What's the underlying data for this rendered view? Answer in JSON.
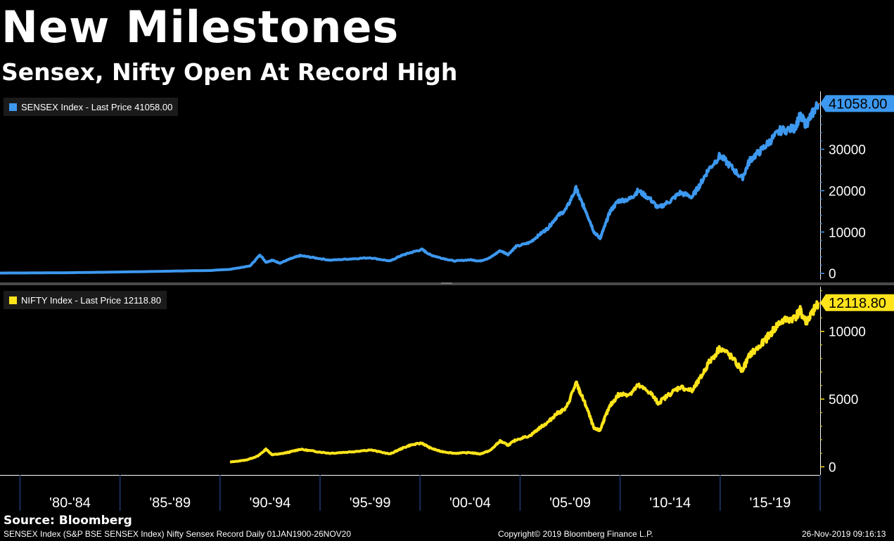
{
  "header": {
    "title": "New Milestones",
    "subtitle": "Sensex, Nifty Open At Record High"
  },
  "colors": {
    "sensex": "#3d98ef",
    "nifty": "#ffe41b",
    "background": "#000000",
    "separator": "#4a4a4a"
  },
  "footer": {
    "source": "Source: Bloomberg",
    "left": "SENSEX Index (S&P BSE SENSEX Index) Nifty Sensex Record  Daily 01JAN1900-26NOV20",
    "center": "Copyright© 2019 Bloomberg Finance L.P.",
    "right": "26-Nov-2019 09:16:13"
  },
  "chart_data": [
    {
      "type": "line",
      "name": "SENSEX",
      "legend": "SENSEX Index  - Last Price 41058.00",
      "last_price_label": "41058.00",
      "y_ticks": [
        0,
        10000,
        20000,
        30000
      ],
      "y_tick_labels": [
        "0",
        "10000",
        "20000",
        "30000"
      ],
      "ylim": [
        -1500,
        44000
      ],
      "x": [
        1979.0,
        1982.0,
        1985.0,
        1987.0,
        1988.5,
        1989.5,
        1990.5,
        1991.5,
        1992.0,
        1992.3,
        1992.6,
        1993.0,
        1993.5,
        1994.0,
        1994.7,
        1995.5,
        1996.5,
        1997.5,
        1998.5,
        1999.0,
        1999.5,
        2000.1,
        2000.5,
        2001.0,
        2001.7,
        2002.5,
        2003.0,
        2003.5,
        2004.0,
        2004.4,
        2004.8,
        2005.5,
        2006.0,
        2006.4,
        2006.8,
        2007.3,
        2007.8,
        2008.0,
        2008.3,
        2008.7,
        2009.0,
        2009.2,
        2009.5,
        2009.9,
        2010.5,
        2010.9,
        2011.5,
        2011.9,
        2012.5,
        2013.0,
        2013.6,
        2014.0,
        2014.4,
        2015.0,
        2015.5,
        2016.1,
        2016.5,
        2017.0,
        2017.5,
        2018.0,
        2018.7,
        2019.0,
        2019.3,
        2019.6,
        2019.9
      ],
      "values": [
        100,
        150,
        350,
        500,
        650,
        700,
        1000,
        1800,
        4500,
        2700,
        3200,
        2500,
        3500,
        4300,
        3800,
        3200,
        3500,
        3800,
        3000,
        4200,
        5000,
        5800,
        4500,
        3800,
        3000,
        3300,
        3000,
        3800,
        5500,
        4600,
        6500,
        7500,
        9500,
        11000,
        13500,
        15500,
        20500,
        18000,
        15000,
        10000,
        8500,
        11000,
        15000,
        17500,
        18000,
        20000,
        18000,
        15800,
        17500,
        19500,
        18500,
        21500,
        25000,
        28500,
        26000,
        23000,
        27500,
        29500,
        32000,
        34500,
        35000,
        38000,
        36000,
        38500,
        41058
      ]
    },
    {
      "type": "line",
      "name": "NIFTY",
      "legend": "NIFTY Index  - Last Price 12118.80",
      "last_price_label": "12118.80",
      "y_ticks": [
        0,
        5000,
        10000
      ],
      "y_tick_labels": [
        "0",
        "5000",
        "10000"
      ],
      "ylim": [
        -600,
        13300
      ],
      "x": [
        1990.5,
        1991.3,
        1991.9,
        1992.3,
        1992.6,
        1993.0,
        1993.5,
        1994.0,
        1994.7,
        1995.5,
        1996.5,
        1997.5,
        1998.5,
        1999.0,
        1999.5,
        2000.1,
        2000.5,
        2001.0,
        2001.7,
        2002.5,
        2003.0,
        2003.5,
        2004.0,
        2004.4,
        2004.8,
        2005.5,
        2006.0,
        2006.4,
        2006.8,
        2007.3,
        2007.8,
        2008.0,
        2008.3,
        2008.7,
        2009.0,
        2009.2,
        2009.5,
        2009.9,
        2010.5,
        2010.9,
        2011.5,
        2011.9,
        2012.5,
        2013.0,
        2013.6,
        2014.0,
        2014.4,
        2015.0,
        2015.5,
        2016.1,
        2016.5,
        2017.0,
        2017.5,
        2018.0,
        2018.7,
        2019.0,
        2019.3,
        2019.6,
        2019.9
      ],
      "values": [
        350,
        500,
        800,
        1300,
        900,
        950,
        1100,
        1300,
        1150,
        1000,
        1100,
        1250,
        950,
        1300,
        1600,
        1750,
        1400,
        1150,
        1000,
        1050,
        950,
        1200,
        1900,
        1600,
        2000,
        2300,
        2900,
        3300,
        3900,
        4300,
        6200,
        5500,
        4500,
        2800,
        2700,
        3500,
        4500,
        5300,
        5400,
        6000,
        5500,
        4700,
        5400,
        5900,
        5600,
        6500,
        7600,
        8800,
        8200,
        7100,
        8300,
        8900,
        9800,
        10700,
        11000,
        11500,
        10700,
        11300,
        12118
      ]
    }
  ],
  "x_axis": {
    "labels": [
      "'80-'84",
      "'85-'89",
      "'90-'94",
      "'95-'99",
      "'00-'04",
      "'05-'09",
      "'10-'14",
      "'15-'19"
    ],
    "boundaries": [
      1980,
      1985,
      1990,
      1995,
      2000,
      2005,
      2010,
      2015,
      2020
    ],
    "range": [
      1979.0,
      2020.0
    ]
  }
}
